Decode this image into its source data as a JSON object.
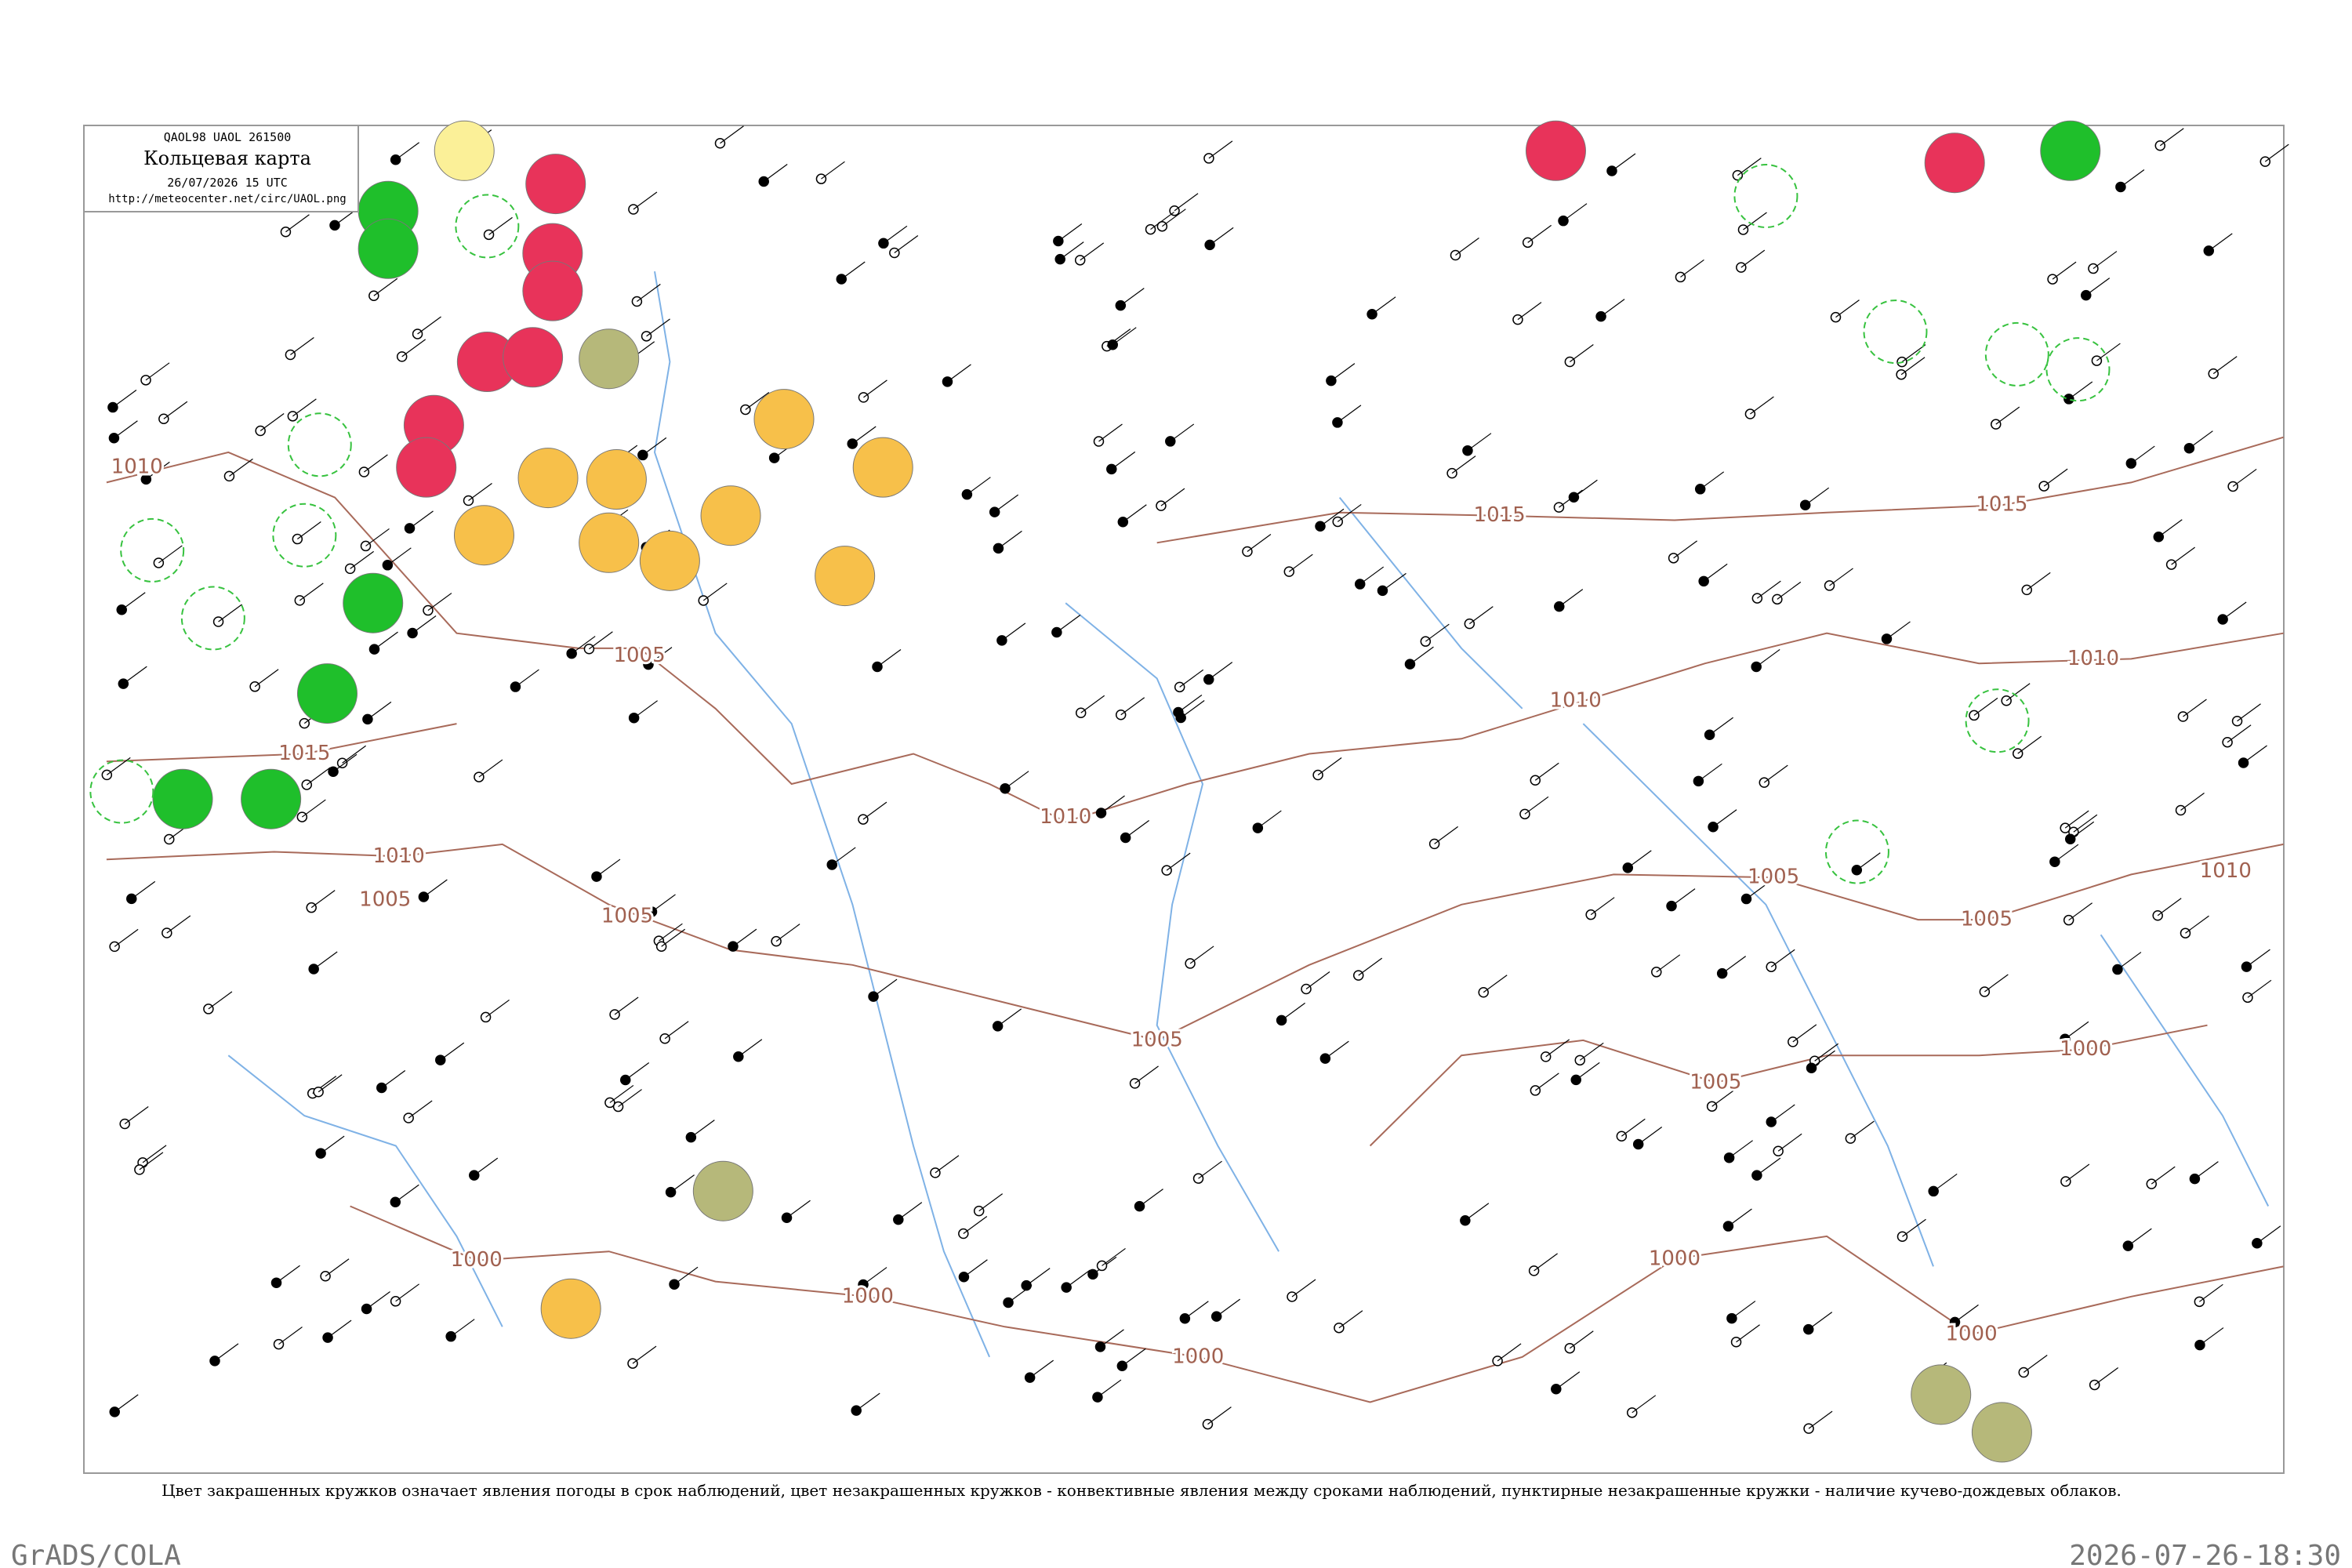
{
  "header": {
    "code_line": "QAOL98  UAOL  261500",
    "title": "Кольцевая карта",
    "datetime": "26/07/2026 15 UTC",
    "url": "http://meteocenter.net/circ/UAOL.png"
  },
  "isobar_labels": [
    "1010",
    "1015",
    "1015",
    "1010",
    "1010",
    "1015",
    "1010",
    "1005",
    "1005",
    "1005",
    "1010",
    "1005",
    "1000",
    "1000",
    "1000",
    "1000",
    "1000",
    "1000",
    "1005",
    "1005",
    "1010",
    "1005"
  ],
  "caption": "Цвет закрашенных кружков означает явления погоды в срок наблюдений, цвет незакрашенных кружков - конвективные явления между сроками наблюдений, пунктирные незакрашенные кружки - наличие кучево-дождевых облаков.",
  "footer": {
    "left": "GrADS/COLA",
    "right": "2026-07-26-18:30"
  }
}
